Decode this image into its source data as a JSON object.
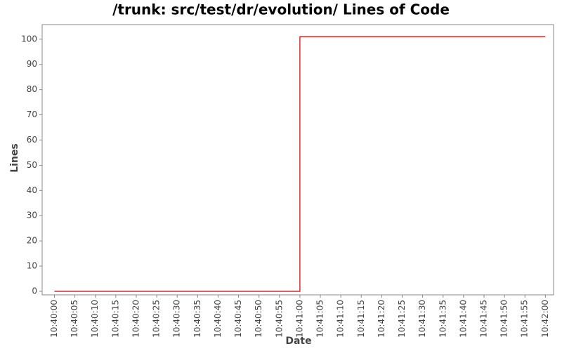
{
  "chart_data": {
    "type": "line",
    "step": "post",
    "title": "/trunk: src/test/dr/evolution/ Lines of Code",
    "x_label": "Date",
    "y_label": "Lines",
    "x": [
      "10:40:00",
      "10:41:00",
      "10:42:00"
    ],
    "values": [
      0,
      101,
      101
    ],
    "color": "#cc0000",
    "xlim": [
      "10:39:57",
      "10:42:02"
    ],
    "xticks": [
      "10:40:00",
      "10:40:05",
      "10:40:10",
      "10:40:15",
      "10:40:20",
      "10:40:25",
      "10:40:30",
      "10:40:35",
      "10:40:40",
      "10:40:45",
      "10:40:50",
      "10:40:55",
      "10:41:00",
      "10:41:05",
      "10:41:10",
      "10:41:15",
      "10:41:20",
      "10:41:25",
      "10:41:30",
      "10:41:35",
      "10:41:40",
      "10:41:45",
      "10:41:50",
      "10:41:55",
      "10:42:00"
    ],
    "ylim": [
      -1.4,
      105.8
    ],
    "yticks": [
      0,
      10,
      20,
      30,
      40,
      50,
      60,
      70,
      80,
      90,
      100
    ],
    "grid": false
  }
}
